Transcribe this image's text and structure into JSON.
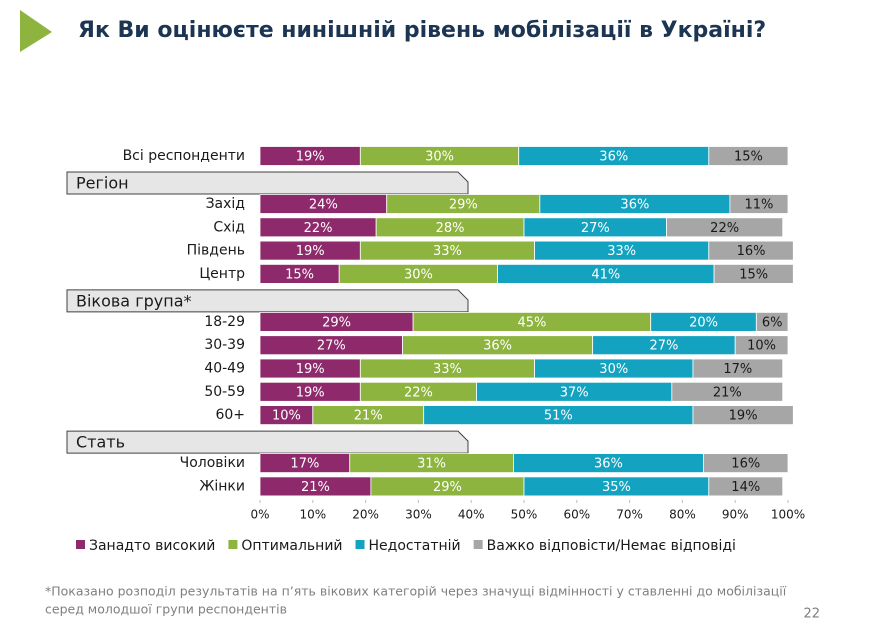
{
  "chart_data": {
    "type": "stacked_barh",
    "title": "Як Ви оцінюєте нинішній рівень мобілізації в Україні?",
    "sections": [
      {
        "categories": [
          "Всі респонденти"
        ]
      },
      {
        "title": "Регіон",
        "categories": [
          "Захід",
          "Схід",
          "Південь",
          "Центр"
        ]
      },
      {
        "title": "Вікова група*",
        "categories": [
          "18-29",
          "30-39",
          "40-49",
          "50-59",
          "60+"
        ]
      },
      {
        "title": "Стать",
        "categories": [
          "Чоловіки",
          "Жінки"
        ]
      }
    ],
    "series": [
      {
        "name": "Занадто високий",
        "color": "#8e2a6b",
        "values": [
          19,
          24,
          22,
          19,
          15,
          29,
          27,
          19,
          19,
          10,
          17,
          21
        ],
        "value_labels": [
          "19%",
          "24%",
          "22%",
          "19%",
          "15%",
          "29%",
          "27%",
          "19%",
          "19%",
          "10%",
          "17%",
          "21%"
        ]
      },
      {
        "name": "Оптимальний",
        "color": "#8db43e",
        "values": [
          30,
          29,
          28,
          33,
          30,
          45,
          36,
          33,
          22,
          21,
          31,
          29
        ],
        "value_labels": [
          "30%",
          "29%",
          "28%",
          "33%",
          "30%",
          "45%",
          "36%",
          "33%",
          "22%",
          "21%",
          "31%",
          "29%"
        ]
      },
      {
        "name": "Недостатній",
        "color": "#13a3c0",
        "values": [
          36,
          36,
          27,
          33,
          41,
          20,
          27,
          30,
          37,
          51,
          36,
          35
        ],
        "value_labels": [
          "36%",
          "36%",
          "27%",
          "33%",
          "41%",
          "20%",
          "27%",
          "30%",
          "37%",
          "51%",
          "36%",
          "35%"
        ]
      },
      {
        "name": "Важко відповісти/Немає відповіді",
        "color": "#a6a6a6",
        "values": [
          15,
          11,
          22,
          16,
          15,
          6,
          10,
          17,
          21,
          19,
          16,
          14
        ],
        "value_labels": [
          "15%",
          "11%",
          "22%",
          "16%",
          "15%",
          "6%",
          "10%",
          "17%",
          "21%",
          "19%",
          "16%",
          "14%"
        ]
      }
    ],
    "xlim": [
      0,
      100
    ],
    "xticks": [
      {
        "value": 0,
        "label": "0%"
      },
      {
        "value": 10,
        "label": "10%"
      },
      {
        "value": 20,
        "label": "20%"
      },
      {
        "value": 30,
        "label": "30%"
      },
      {
        "value": 40,
        "label": "40%"
      },
      {
        "value": 50,
        "label": "50%"
      },
      {
        "value": 60,
        "label": "60%"
      },
      {
        "value": 70,
        "label": "70%"
      },
      {
        "value": 80,
        "label": "80%"
      },
      {
        "value": 90,
        "label": "90%"
      },
      {
        "value": 100,
        "label": "100%"
      }
    ],
    "legend": "bottom"
  },
  "footnote": [
    "*Показано розподіл результатів на п’ять вікових категорій через значущі відмінності у ставленні до мобілізації",
    "серед молодшої групи респондентів"
  ],
  "page_number": "22"
}
